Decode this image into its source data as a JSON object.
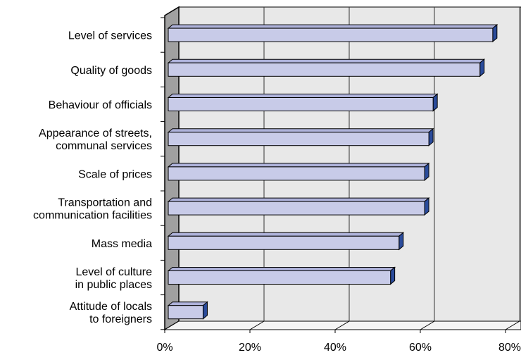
{
  "chart_data": {
    "type": "bar",
    "orientation": "horizontal",
    "three_d": true,
    "categories": [
      [
        "Level of services"
      ],
      [
        "Quality of goods"
      ],
      [
        "Behaviour of officials"
      ],
      [
        "Appearance of streets,",
        "communal services"
      ],
      [
        "Scale of prices"
      ],
      [
        "Transportation and",
        "communication facilities"
      ],
      [
        "Mass media"
      ],
      [
        "Level of culture",
        "in public places"
      ],
      [
        "Attitude of locals",
        "to foreigners"
      ]
    ],
    "values": [
      77,
      74,
      63,
      62,
      61,
      61,
      55,
      53,
      9
    ],
    "xlim": [
      0,
      80
    ],
    "x_ticks": [
      "0%",
      "20%",
      "40%",
      "60%",
      "80%"
    ],
    "grid": true,
    "title": "",
    "xlabel": "",
    "ylabel": "",
    "colors": {
      "bar_front": "#c8cbe8",
      "bar_top": "#aeb2da",
      "bar_side": "#2a4b9b",
      "wall": "#e8e8e8",
      "wall_left": "#a0a0a0",
      "grid": "#333333"
    }
  }
}
